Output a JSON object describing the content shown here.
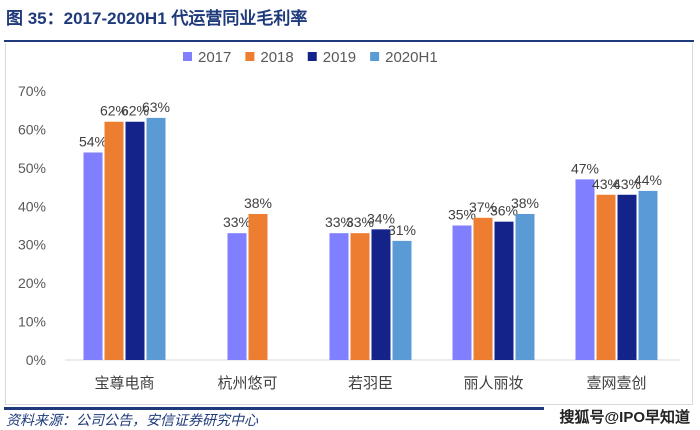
{
  "title": "图 35：2017-2020H1 代运营同业毛利率",
  "source": "资料来源：公司公告，安信证券研究中心",
  "watermark": "搜狐号@IPO早知道",
  "chart_data": {
    "type": "bar",
    "title": "",
    "xlabel": "",
    "ylabel": "",
    "ylim": [
      0,
      70
    ],
    "yticks": [
      "0%",
      "10%",
      "20%",
      "30%",
      "40%",
      "50%",
      "60%",
      "70%"
    ],
    "grid": false,
    "legend_position": "top",
    "categories": [
      "宝尊电商",
      "杭州悠可",
      "若羽臣",
      "丽人丽妆",
      "壹网壹创"
    ],
    "series": [
      {
        "name": "2017",
        "color": "#7F7FFF",
        "values": [
          54,
          33,
          33,
          35,
          47
        ]
      },
      {
        "name": "2018",
        "color": "#ED7D31",
        "values": [
          62,
          38,
          33,
          37,
          43
        ]
      },
      {
        "name": "2019",
        "color": "#14238A",
        "values": [
          62,
          null,
          34,
          36,
          43
        ]
      },
      {
        "name": "2020H1",
        "color": "#5B9BD5",
        "values": [
          63,
          null,
          31,
          38,
          44
        ]
      }
    ]
  }
}
